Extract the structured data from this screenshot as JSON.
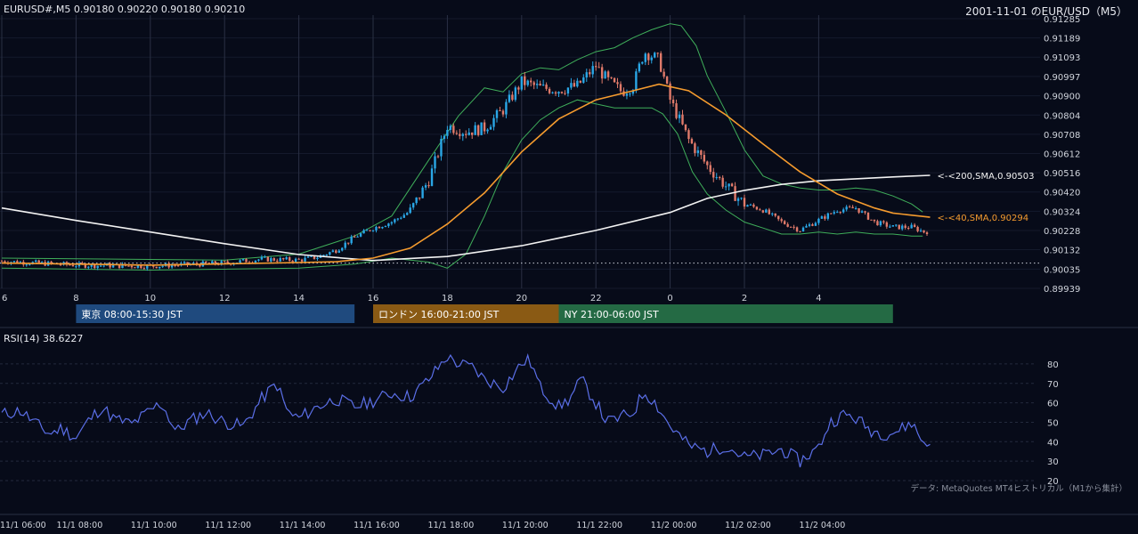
{
  "header": {
    "symbol_line": "EURUSD#,M5 0.90180 0.90220 0.90180 0.90210",
    "title": "2001-11-01 のEUR/USD（M5）"
  },
  "credit": "データ: MetaQuotes MT4ヒストリカル（M1から集計）",
  "rsi": {
    "label": "RSI(14) 38.6227",
    "ylim": [
      20,
      85
    ],
    "ticks": [
      80,
      70,
      60,
      50,
      40,
      30,
      20
    ]
  },
  "sessions": [
    {
      "name": "東京 08:00-15:30 JST",
      "color": "#1f4a7e",
      "start": 8,
      "end": 15.5
    },
    {
      "name": "ロンドン 16:00-21:00 JST",
      "color": "#8a5a14",
      "start": 16,
      "end": 21
    },
    {
      "name": "NY 21:00-06:00 JST",
      "color": "#246a44",
      "start": 21,
      "end": 30
    }
  ],
  "annotations": {
    "sma200": "<-<200,SMA,0.90503",
    "sma40": "<-<40,SMA,0.90294"
  },
  "colors": {
    "bull": "#2aa7e6",
    "bear": "#e07a6a",
    "sma200": "#f2f2f2",
    "sma40": "#f59b2e",
    "bollinger": "#3fae5a",
    "rsi": "#5b6fe8",
    "grid": "#2a3044"
  },
  "chart_data": [
    {
      "type": "candlestick",
      "title": "2001-11-01 のEUR/USD（M5）",
      "x_ticks": [
        "6",
        "8",
        "10",
        "12",
        "14",
        "16",
        "18",
        "20",
        "22",
        "0",
        "2",
        "4"
      ],
      "y_ticks": [
        0.91285,
        0.91189,
        0.91093,
        0.90997,
        0.909,
        0.90804,
        0.90708,
        0.90612,
        0.90516,
        0.9042,
        0.90324,
        0.90228,
        0.90132,
        0.90035,
        0.89939
      ],
      "ylim": [
        0.89939,
        0.91285
      ],
      "xlim_hours": [
        6,
        31
      ],
      "last_close": 0.9021,
      "reference_line": 0.90065,
      "price_path": [
        [
          6.0,
          0.90075
        ],
        [
          8.0,
          0.90055
        ],
        [
          10.0,
          0.9005
        ],
        [
          12.0,
          0.90065
        ],
        [
          13.0,
          0.90085
        ],
        [
          14.0,
          0.9008
        ],
        [
          14.5,
          0.90095
        ],
        [
          15.0,
          0.9013
        ],
        [
          15.5,
          0.90195
        ],
        [
          16.0,
          0.9024
        ],
        [
          16.5,
          0.9027
        ],
        [
          17.0,
          0.90325
        ],
        [
          17.5,
          0.9048
        ],
        [
          18.0,
          0.9075
        ],
        [
          18.5,
          0.9072
        ],
        [
          19.0,
          0.9074
        ],
        [
          19.5,
          0.9083
        ],
        [
          20.0,
          0.9097
        ],
        [
          20.5,
          0.9094
        ],
        [
          21.0,
          0.9093
        ],
        [
          21.5,
          0.9095
        ],
        [
          22.0,
          0.9105
        ],
        [
          22.3,
          0.9098
        ],
        [
          22.7,
          0.9092
        ],
        [
          23.0,
          0.9095
        ],
        [
          23.3,
          0.9112
        ],
        [
          23.7,
          0.9108
        ],
        [
          24.0,
          0.9088
        ],
        [
          24.5,
          0.9068
        ],
        [
          25.0,
          0.9055
        ],
        [
          25.5,
          0.9045
        ],
        [
          26.0,
          0.9036
        ],
        [
          26.5,
          0.9033
        ],
        [
          27.0,
          0.9027
        ],
        [
          27.5,
          0.9023
        ],
        [
          28.0,
          0.9028
        ],
        [
          28.5,
          0.9033
        ],
        [
          29.0,
          0.9034
        ],
        [
          29.5,
          0.9027
        ],
        [
          30.0,
          0.90245
        ],
        [
          30.5,
          0.90245
        ],
        [
          31.0,
          0.9021
        ]
      ],
      "sma40": [
        [
          6.0,
          0.90065
        ],
        [
          10.0,
          0.90055
        ],
        [
          14.0,
          0.90068
        ],
        [
          15.0,
          0.90072
        ],
        [
          16.0,
          0.9009
        ],
        [
          17.0,
          0.9014
        ],
        [
          18.0,
          0.9026
        ],
        [
          19.0,
          0.90415
        ],
        [
          20.0,
          0.9062
        ],
        [
          21.0,
          0.90785
        ],
        [
          22.0,
          0.9088
        ],
        [
          23.0,
          0.90925
        ],
        [
          23.7,
          0.90958
        ],
        [
          24.5,
          0.90925
        ],
        [
          25.5,
          0.90805
        ],
        [
          26.5,
          0.9066
        ],
        [
          27.5,
          0.9052
        ],
        [
          28.5,
          0.9041
        ],
        [
          29.5,
          0.9034
        ],
        [
          30.0,
          0.90315
        ],
        [
          31.0,
          0.90294
        ]
      ],
      "sma200": [
        [
          6.0,
          0.9034
        ],
        [
          8.0,
          0.90278
        ],
        [
          10.0,
          0.9022
        ],
        [
          12.0,
          0.90162
        ],
        [
          14.0,
          0.90108
        ],
        [
          16.0,
          0.90078
        ],
        [
          18.0,
          0.90098
        ],
        [
          20.0,
          0.90152
        ],
        [
          22.0,
          0.90228
        ],
        [
          24.0,
          0.90318
        ],
        [
          25.0,
          0.90388
        ],
        [
          26.0,
          0.90428
        ],
        [
          27.0,
          0.90458
        ],
        [
          28.0,
          0.90476
        ],
        [
          30.0,
          0.90495
        ],
        [
          31.0,
          0.90503
        ]
      ],
      "bollinger_upper": [
        [
          6.0,
          0.9009
        ],
        [
          12.0,
          0.9008
        ],
        [
          14.0,
          0.9011
        ],
        [
          15.5,
          0.902
        ],
        [
          16.5,
          0.903
        ],
        [
          17.5,
          0.9058
        ],
        [
          18.3,
          0.908
        ],
        [
          19.0,
          0.9094
        ],
        [
          19.5,
          0.9092
        ],
        [
          20.0,
          0.9101
        ],
        [
          20.5,
          0.9104
        ],
        [
          21.0,
          0.9103
        ],
        [
          21.5,
          0.9108
        ],
        [
          22.0,
          0.9112
        ],
        [
          22.5,
          0.9114
        ],
        [
          23.0,
          0.9119
        ],
        [
          23.5,
          0.9123
        ],
        [
          24.0,
          0.9126
        ],
        [
          24.3,
          0.9125
        ],
        [
          24.7,
          0.9115
        ],
        [
          25.0,
          0.91
        ],
        [
          25.5,
          0.9082
        ],
        [
          26.0,
          0.9063
        ],
        [
          26.5,
          0.905
        ],
        [
          27.0,
          0.9046
        ],
        [
          27.5,
          0.9044
        ],
        [
          28.0,
          0.9043
        ],
        [
          28.5,
          0.9043
        ],
        [
          29.0,
          0.9044
        ],
        [
          29.5,
          0.9043
        ],
        [
          30.0,
          0.904
        ],
        [
          30.5,
          0.9036
        ],
        [
          30.8,
          0.9032
        ]
      ],
      "bollinger_lower": [
        [
          6.0,
          0.9004
        ],
        [
          10.0,
          0.9003
        ],
        [
          14.0,
          0.9004
        ],
        [
          15.5,
          0.9006
        ],
        [
          16.5,
          0.9009
        ],
        [
          17.5,
          0.9007
        ],
        [
          18.0,
          0.9004
        ],
        [
          18.5,
          0.9011
        ],
        [
          19.0,
          0.903
        ],
        [
          19.5,
          0.9052
        ],
        [
          20.0,
          0.9068
        ],
        [
          20.5,
          0.9078
        ],
        [
          21.0,
          0.9084
        ],
        [
          21.5,
          0.9088
        ],
        [
          22.0,
          0.9086
        ],
        [
          22.5,
          0.9084
        ],
        [
          23.0,
          0.9084
        ],
        [
          23.5,
          0.9084
        ],
        [
          23.8,
          0.9081
        ],
        [
          24.2,
          0.9071
        ],
        [
          24.6,
          0.9052
        ],
        [
          25.0,
          0.9041
        ],
        [
          25.5,
          0.9033
        ],
        [
          26.0,
          0.9027
        ],
        [
          26.5,
          0.9024
        ],
        [
          27.0,
          0.9021
        ],
        [
          27.5,
          0.9021
        ],
        [
          28.0,
          0.9022
        ],
        [
          28.5,
          0.9021
        ],
        [
          29.0,
          0.9022
        ],
        [
          29.5,
          0.9021
        ],
        [
          30.0,
          0.9021
        ],
        [
          30.5,
          0.902
        ],
        [
          30.8,
          0.902
        ]
      ]
    },
    {
      "type": "line",
      "title": "RSI(14) 38.6227",
      "x_ticks": [
        "11/1 06:00",
        "11/1 08:00",
        "11/1 10:00",
        "11/1 12:00",
        "11/1 14:00",
        "11/1 16:00",
        "11/1 18:00",
        "11/1 20:00",
        "11/1 22:00",
        "11/2 00:00",
        "11/2 02:00",
        "11/2 04:00"
      ],
      "ylim": [
        20,
        85
      ],
      "series": [
        {
          "values": [
            [
              6.0,
              54
            ],
            [
              6.5,
              56
            ],
            [
              7.0,
              48
            ],
            [
              7.3,
              44
            ],
            [
              7.6,
              47
            ],
            [
              8.0,
              42
            ],
            [
              8.3,
              50
            ],
            [
              8.7,
              58
            ],
            [
              9.0,
              52
            ],
            [
              9.5,
              49
            ],
            [
              10.0,
              56
            ],
            [
              10.3,
              60
            ],
            [
              10.7,
              45
            ],
            [
              11.0,
              50
            ],
            [
              11.5,
              55
            ],
            [
              12.0,
              50
            ],
            [
              12.5,
              48
            ],
            [
              13.0,
              62
            ],
            [
              13.4,
              70
            ],
            [
              13.7,
              55
            ],
            [
              14.0,
              52
            ],
            [
              14.5,
              58
            ],
            [
              15.0,
              62
            ],
            [
              15.5,
              58
            ],
            [
              16.0,
              61
            ],
            [
              16.5,
              65
            ],
            [
              17.0,
              63
            ],
            [
              17.5,
              72
            ],
            [
              18.0,
              84
            ],
            [
              18.3,
              80
            ],
            [
              18.7,
              78
            ],
            [
              19.0,
              72
            ],
            [
              19.5,
              68
            ],
            [
              20.0,
              80
            ],
            [
              20.2,
              83
            ],
            [
              20.5,
              68
            ],
            [
              21.0,
              58
            ],
            [
              21.3,
              62
            ],
            [
              21.6,
              72
            ],
            [
              22.0,
              60
            ],
            [
              22.3,
              50
            ],
            [
              22.6,
              52
            ],
            [
              23.0,
              55
            ],
            [
              23.3,
              66
            ],
            [
              23.6,
              60
            ],
            [
              24.0,
              48
            ],
            [
              24.5,
              38
            ],
            [
              25.0,
              35
            ],
            [
              25.5,
              38
            ],
            [
              26.0,
              32
            ],
            [
              26.5,
              33
            ],
            [
              27.0,
              36
            ],
            [
              27.5,
              30
            ],
            [
              28.0,
              37
            ],
            [
              28.3,
              50
            ],
            [
              28.7,
              54
            ],
            [
              29.0,
              52
            ],
            [
              29.4,
              46
            ],
            [
              29.8,
              44
            ],
            [
              30.2,
              46
            ],
            [
              30.5,
              50
            ],
            [
              30.8,
              40
            ],
            [
              31.0,
              38.6227
            ]
          ]
        }
      ]
    }
  ]
}
